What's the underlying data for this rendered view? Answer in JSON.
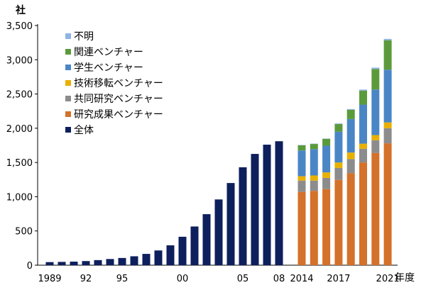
{
  "chart_data": {
    "type": "bar",
    "ylabel": "社",
    "xlabel": "年度",
    "ylim": [
      0,
      3500
    ],
    "yticks": [
      0,
      500,
      1000,
      1500,
      2000,
      2500,
      3000,
      3500
    ],
    "ytick_labels": [
      "0",
      "500",
      "1,000",
      "1,500",
      "2,000",
      "2,500",
      "3,000",
      "3,500"
    ],
    "grid": false,
    "legend_position": "top-left",
    "colors": {
      "不明": "#8eb4e3",
      "関連ベンチャー": "#5b9a3b",
      "学生ベンチャー": "#4a86c5",
      "技術移転ベンチャー": "#e8b000",
      "共同研究ベンチャー": "#8c8c8c",
      "研究成果ベンチャー": "#d4712a",
      "全体": "#0d1f5c"
    },
    "legend": [
      "不明",
      "関連ベンチャー",
      "学生ベンチャー",
      "技術移転ベンチャー",
      "共同研究ベンチャー",
      "研究成果ベンチャー",
      "全体"
    ],
    "total_series": {
      "name": "全体",
      "years": [
        1989,
        1990,
        1991,
        1992,
        1993,
        1994,
        1995,
        1996,
        1997,
        1998,
        1999,
        2000,
        2001,
        2002,
        2003,
        2004,
        2005,
        2006,
        2007,
        2008
      ],
      "values": [
        45,
        48,
        52,
        60,
        74,
        90,
        105,
        130,
        165,
        215,
        290,
        415,
        565,
        745,
        960,
        1200,
        1430,
        1625,
        1760,
        1810
      ]
    },
    "stacked_series": {
      "years": [
        2014,
        2015,
        2016,
        2017,
        2018,
        2019,
        2020,
        2021
      ],
      "series": [
        {
          "name": "研究成果ベンチャー",
          "values": [
            1070,
            1085,
            1110,
            1245,
            1345,
            1500,
            1640,
            1780
          ]
        },
        {
          "name": "共同研究ベンチャー",
          "values": [
            165,
            150,
            165,
            175,
            205,
            200,
            185,
            220
          ]
        },
        {
          "name": "技術移転ベンチャー",
          "values": [
            65,
            75,
            80,
            80,
            95,
            75,
            75,
            85
          ]
        },
        {
          "name": "学生ベンチャー",
          "values": [
            375,
            385,
            390,
            450,
            490,
            570,
            665,
            770
          ]
        },
        {
          "name": "関連ベンチャー",
          "values": [
            75,
            75,
            100,
            110,
            135,
            205,
            300,
            430
          ]
        },
        {
          "name": "不明",
          "values": [
            5,
            5,
            5,
            10,
            10,
            15,
            20,
            20
          ]
        }
      ]
    },
    "xtick_labels": [
      {
        "text": "1989",
        "year": 1989
      },
      {
        "text": "92",
        "year": 1992
      },
      {
        "text": "95",
        "year": 1995
      },
      {
        "text": "00",
        "year": 2000
      },
      {
        "text": "05",
        "year": 2005
      },
      {
        "text": "08",
        "year": 2008
      },
      {
        "text": "2014",
        "year": 2014
      },
      {
        "text": "2017",
        "year": 2017
      },
      {
        "text": "2021",
        "year": 2021
      }
    ]
  }
}
